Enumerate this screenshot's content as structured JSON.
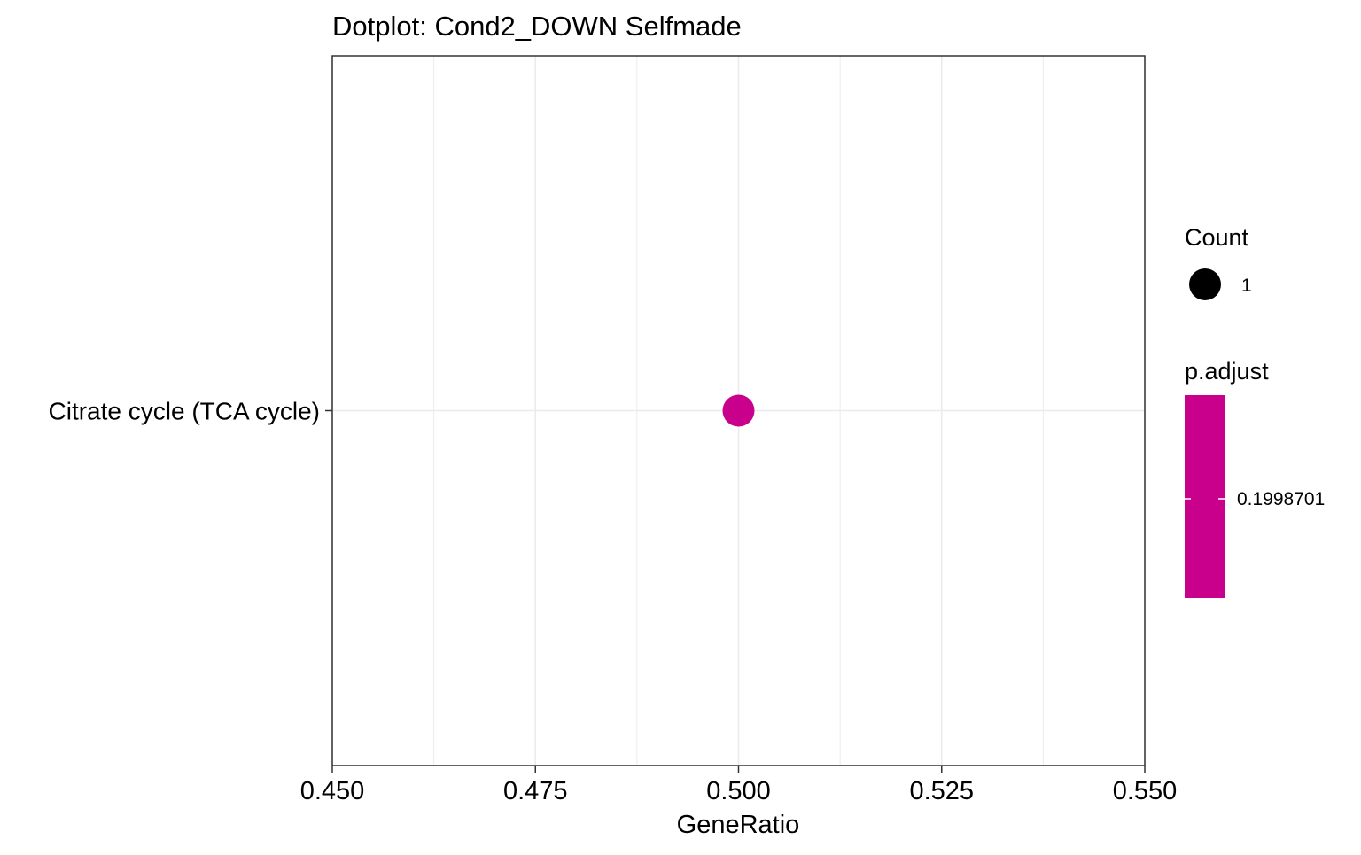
{
  "chart_data": {
    "type": "scatter",
    "title": "Dotplot: Cond2_DOWN Selfmade",
    "xlabel": "GeneRatio",
    "ylabel": "",
    "xlim": [
      0.45,
      0.55
    ],
    "x_ticks": [
      "0.450",
      "0.475",
      "0.500",
      "0.525",
      "0.550"
    ],
    "x_tick_values": [
      0.45,
      0.475,
      0.5,
      0.525,
      0.55
    ],
    "x_minor_gridlines": [
      0.4625,
      0.4875,
      0.5125,
      0.5375
    ],
    "categories": [
      "Citrate cycle (TCA cycle)"
    ],
    "points": [
      {
        "category": "Citrate cycle (TCA cycle)",
        "x": 0.5,
        "count": 1,
        "p_adjust": 0.1998701,
        "color": "#C8008C"
      }
    ],
    "grid": true,
    "legend_position": "right",
    "legend": {
      "count": {
        "title": "Count",
        "entries": [
          {
            "label": "1",
            "value": 1
          }
        ]
      },
      "p_adjust": {
        "title": "p.adjust",
        "label": "0.1998701",
        "value": 0.1998701,
        "color": "#C8008C"
      }
    },
    "colors": {
      "point": "#C8008C",
      "gridline": "#EBEBEB",
      "panel_border": "#333333",
      "text": "#000000"
    }
  }
}
